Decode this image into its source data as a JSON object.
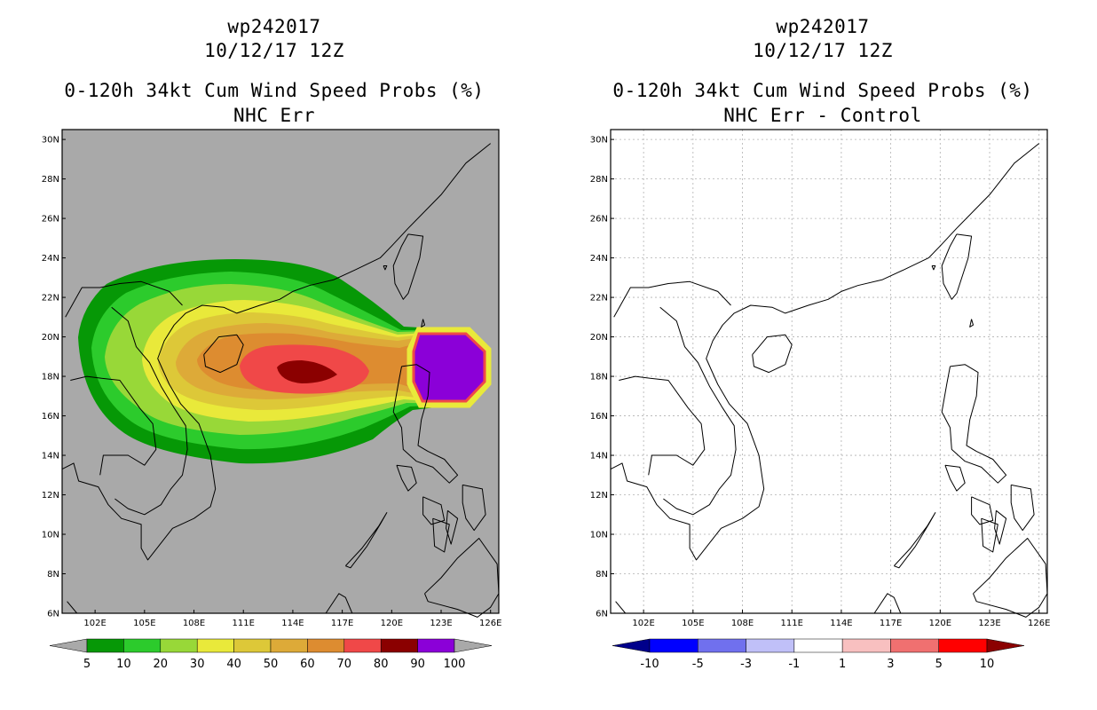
{
  "left": {
    "title_line1": "wp242017",
    "title_line2": "10/12/17 12Z",
    "title_line3": "0-120h 34kt Cum Wind Speed Probs (%)",
    "title_line4": "NHC Err",
    "background_color": "#a9a9a9",
    "colorbar": {
      "labels": [
        "5",
        "10",
        "20",
        "30",
        "40",
        "50",
        "60",
        "70",
        "80",
        "90",
        "100"
      ],
      "colors": [
        "#069806",
        "#2ccb2c",
        "#98d838",
        "#e9e93a",
        "#ddc838",
        "#ddaa38",
        "#dd8c30",
        "#f04848",
        "#8b0000",
        "#8b00d8"
      ],
      "under_color": "#a9a9a9",
      "over_color": "#a9a9a9"
    }
  },
  "right": {
    "title_line1": "wp242017",
    "title_line2": "10/12/17 12Z",
    "title_line3": "0-120h 34kt Cum Wind Speed Probs (%)",
    "title_line4": "NHC Err - Control",
    "background_color": "#ffffff",
    "colorbar": {
      "labels": [
        "-10",
        "-5",
        "-3",
        "-1",
        "1",
        "3",
        "5",
        "10"
      ],
      "colors": [
        "#0000ff",
        "#7070ee",
        "#c0c0f8",
        "#ffffff",
        "#f8c0c0",
        "#f07070",
        "#ff0000"
      ],
      "under_color": "#00008b",
      "over_color": "#8b0000"
    }
  },
  "map": {
    "lat_labels": [
      "30N",
      "28N",
      "26N",
      "24N",
      "22N",
      "20N",
      "18N",
      "16N",
      "14N",
      "12N",
      "10N",
      "8N",
      "6N"
    ],
    "lon_labels": [
      "102E",
      "105E",
      "108E",
      "111E",
      "114E",
      "117E",
      "120E",
      "123E",
      "126E"
    ]
  }
}
